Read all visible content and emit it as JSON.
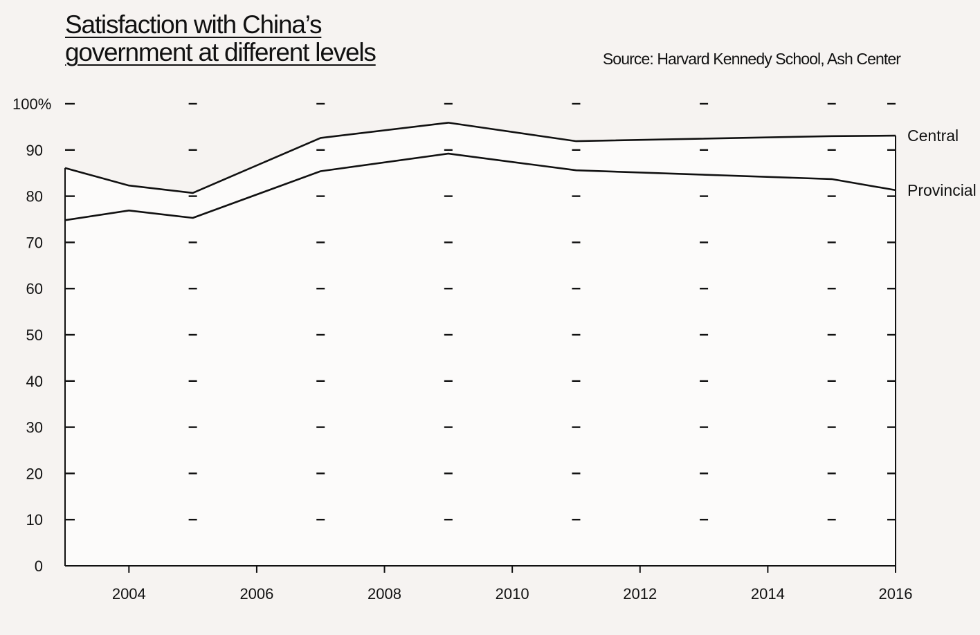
{
  "title_lines": [
    "Satisfaction with China’s",
    "government at different levels"
  ],
  "source": "Source: Harvard Kennedy School, Ash Center",
  "colors": {
    "background": "#f6f3f1",
    "plot_fill": "#fcfbfa",
    "ink": "#111111"
  },
  "chart_data": {
    "type": "line",
    "title": "Satisfaction with China’s government at different levels",
    "xlabel": "",
    "ylabel": "",
    "xlim": [
      2003,
      2016
    ],
    "ylim": [
      0,
      100
    ],
    "x_ticks": [
      2004,
      2006,
      2008,
      2010,
      2012,
      2014,
      2016
    ],
    "x_tick_labels": [
      "2004",
      "2006",
      "2008",
      "2010",
      "2012",
      "2014",
      "2016"
    ],
    "y_ticks": [
      0,
      10,
      20,
      30,
      40,
      50,
      60,
      70,
      80,
      90,
      100
    ],
    "y_tick_labels": [
      "0",
      "10",
      "20",
      "30",
      "40",
      "50",
      "60",
      "70",
      "80",
      "90",
      "100%"
    ],
    "grid": "dashed horizontal marks at each y tick, placed at alternate survey years",
    "series": [
      {
        "name": "Central",
        "x": [
          2003,
          2004,
          2005,
          2007,
          2009,
          2011,
          2015,
          2016
        ],
        "y": [
          86.1,
          82.3,
          80.7,
          92.6,
          95.9,
          91.9,
          93.0,
          93.1
        ]
      },
      {
        "name": "Provincial",
        "x": [
          2003,
          2004,
          2005,
          2007,
          2009,
          2011,
          2015,
          2016
        ],
        "y": [
          74.8,
          76.9,
          75.3,
          85.4,
          89.2,
          85.6,
          83.7,
          81.3
        ]
      }
    ]
  }
}
